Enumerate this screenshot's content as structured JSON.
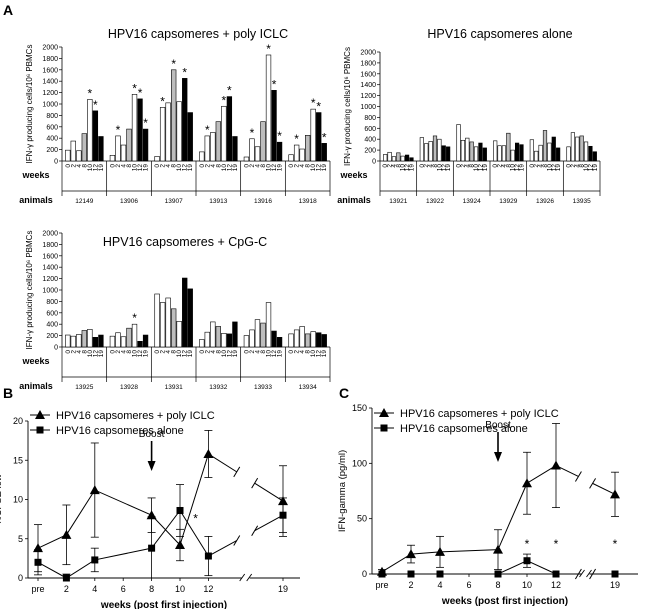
{
  "panel_letters": [
    "A",
    "B",
    "C"
  ],
  "panel_a": {
    "week_labels": [
      "0",
      "2",
      "4",
      "8",
      "10",
      "12",
      "19"
    ],
    "weeks_label": "weeks",
    "animals_label": "animals",
    "ylabel": "IFN-γ producing cells/10⁶ PBMCs",
    "ytick_labels": [
      "0",
      "200",
      "400",
      "600",
      "800",
      "1000",
      "1200",
      "1400",
      "1600",
      "1800",
      "2000"
    ]
  },
  "chart_data": [
    {
      "type": "bar",
      "title": "HPV16 capsomeres + poly ICLC",
      "ylabel": "IFN-γ producing cells/10⁶ PBMCs",
      "ylim": [
        0,
        2000
      ],
      "categories": [
        "0",
        "2",
        "4",
        "8",
        "10",
        "12",
        "19"
      ],
      "star_marker": "*",
      "groups": [
        {
          "animal": "12149",
          "values": [
            190,
            350,
            180,
            480,
            1080,
            880,
            430
          ],
          "stars": [
            4,
            5
          ]
        },
        {
          "animal": "13906",
          "values": [
            100,
            440,
            280,
            560,
            1170,
            1090,
            560
          ],
          "stars": [
            1,
            4,
            5,
            6
          ]
        },
        {
          "animal": "13907",
          "values": [
            80,
            940,
            1020,
            1600,
            1040,
            1450,
            850
          ],
          "stars": [
            1,
            3,
            5
          ]
        },
        {
          "animal": "13913",
          "values": [
            160,
            440,
            500,
            690,
            960,
            1130,
            430
          ],
          "stars": [
            1,
            4,
            5
          ]
        },
        {
          "animal": "13916",
          "values": [
            70,
            390,
            250,
            690,
            1860,
            1240,
            330
          ],
          "stars": [
            1,
            4,
            5,
            6
          ]
        },
        {
          "animal": "13918",
          "values": [
            110,
            280,
            210,
            450,
            910,
            850,
            310
          ],
          "stars": [
            1,
            4,
            5,
            6
          ]
        }
      ]
    },
    {
      "type": "bar",
      "title": "HPV16 capsomeres alone",
      "ylabel": "IFN-γ producing cells/10⁶ PBMCs",
      "ylim": [
        0,
        2000
      ],
      "categories": [
        "0",
        "2",
        "4",
        "8",
        "10",
        "12",
        "19"
      ],
      "groups": [
        {
          "animal": "13921",
          "values": [
            120,
            160,
            80,
            150,
            90,
            110,
            60
          ]
        },
        {
          "animal": "13922",
          "values": [
            430,
            320,
            360,
            460,
            400,
            280,
            260
          ]
        },
        {
          "animal": "13924",
          "values": [
            670,
            380,
            420,
            350,
            260,
            330,
            240
          ]
        },
        {
          "animal": "13929",
          "values": [
            370,
            280,
            280,
            510,
            200,
            330,
            300
          ]
        },
        {
          "animal": "13926",
          "values": [
            390,
            180,
            290,
            560,
            330,
            440,
            240
          ]
        },
        {
          "animal": "13935",
          "values": [
            260,
            520,
            440,
            460,
            350,
            270,
            170
          ]
        }
      ]
    },
    {
      "type": "bar",
      "title": "HPV16 capsomeres + CpG-C",
      "ylabel": "IFN-γ producing cells/10⁶ PBMCs",
      "ylim": [
        0,
        2000
      ],
      "categories": [
        "0",
        "2",
        "4",
        "8",
        "10",
        "12",
        "19"
      ],
      "star_marker": "*",
      "groups": [
        {
          "animal": "13925",
          "values": [
            210,
            190,
            220,
            290,
            310,
            170,
            210
          ],
          "stars": []
        },
        {
          "animal": "13928",
          "values": [
            190,
            250,
            180,
            330,
            400,
            100,
            210
          ],
          "stars": [
            4
          ]
        },
        {
          "animal": "13931",
          "values": [
            930,
            780,
            860,
            670,
            450,
            1210,
            1020
          ],
          "stars": []
        },
        {
          "animal": "13932",
          "values": [
            130,
            260,
            440,
            360,
            240,
            230,
            440
          ],
          "stars": []
        },
        {
          "animal": "13933",
          "values": [
            200,
            300,
            480,
            420,
            780,
            280,
            170
          ],
          "stars": []
        },
        {
          "animal": "13934",
          "values": [
            230,
            300,
            360,
            230,
            270,
            250,
            220
          ],
          "stars": []
        }
      ]
    },
    {
      "type": "line",
      "title": "",
      "xlabel": "weeks (post first injection)",
      "ylabel": "%CFSE low",
      "ylim": [
        0,
        20
      ],
      "yticks": [
        0,
        5,
        10,
        15,
        20
      ],
      "x_tick_labels": [
        "pre",
        "2",
        "4",
        "6",
        "8",
        "10",
        "12",
        "19"
      ],
      "x_tick_positions": [
        0,
        2,
        4,
        6,
        8,
        10,
        12,
        19
      ],
      "x_break_between": [
        12,
        19
      ],
      "annotation": "Boost",
      "annotation_x": 8,
      "star_marker": "*",
      "star_positions": [
        {
          "x": 11.1,
          "y": 7.6
        }
      ],
      "series": [
        {
          "name": "HPV16 capsomeres + poly ICLC",
          "marker": "triangle",
          "x": [
            0,
            2,
            4,
            8,
            10,
            12,
            19
          ],
          "y": [
            3.8,
            5.5,
            11.2,
            8.0,
            4.2,
            15.8,
            9.8
          ],
          "err": [
            3.0,
            3.8,
            6.0,
            2.2,
            2.0,
            3.0,
            4.5
          ]
        },
        {
          "name": "HPV16 capsomeres alone",
          "marker": "square",
          "x": [
            0,
            2,
            4,
            8,
            10,
            12,
            19
          ],
          "y": [
            2.0,
            0.0,
            2.3,
            3.8,
            8.6,
            2.8,
            8.0
          ],
          "err": [
            1.6,
            0.5,
            1.5,
            4.0,
            3.3,
            2.5,
            2.2
          ]
        }
      ]
    },
    {
      "type": "line",
      "title": "",
      "xlabel": "weeks (post first injection)",
      "ylabel": "IFN-gamma (pg/ml)",
      "ylim": [
        0,
        150
      ],
      "yticks": [
        0,
        50,
        100,
        150
      ],
      "x_tick_labels": [
        "pre",
        "2",
        "4",
        "6",
        "8",
        "10",
        "12",
        "19"
      ],
      "x_tick_positions": [
        0,
        2,
        4,
        6,
        8,
        10,
        12,
        19
      ],
      "x_break_between": [
        12,
        19
      ],
      "annotation": "Boost",
      "annotation_x": 8,
      "star_marker": "*",
      "star_positions": [
        {
          "x": 10,
          "y": 27
        },
        {
          "x": 12,
          "y": 27
        },
        {
          "x": 19,
          "y": 27
        }
      ],
      "series": [
        {
          "name": "HPV16 capsomeres + poly ICLC",
          "marker": "triangle",
          "x": [
            0,
            2,
            4,
            8,
            10,
            12,
            19
          ],
          "y": [
            2,
            18,
            20,
            22,
            82,
            98,
            72
          ],
          "err": [
            2,
            8,
            14,
            18,
            28,
            38,
            20
          ]
        },
        {
          "name": "HPV16 capsomeres alone",
          "marker": "square",
          "x": [
            0,
            2,
            4,
            8,
            10,
            12,
            19
          ],
          "y": [
            0,
            0,
            0,
            0,
            12,
            0,
            0
          ],
          "err": [
            0,
            0,
            0,
            0,
            6,
            0,
            0
          ]
        }
      ]
    }
  ]
}
